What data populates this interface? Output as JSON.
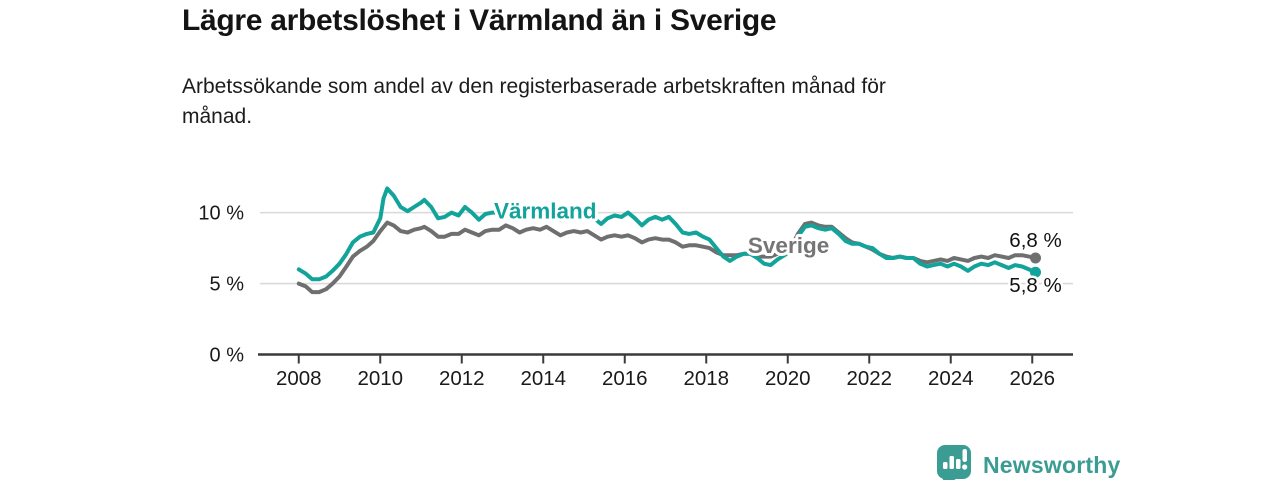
{
  "header": {
    "title": "Lägre arbetslöshet i Värmland än i Sverige",
    "subtitle_lines": [
      "Arbetssökande som andel av den registerbaserade arbetskraften månad för",
      "månad."
    ]
  },
  "footer": {
    "brand": "Newsworthy",
    "brand_color": "#3b9c93",
    "icon": "bar-chart-speech-bubble"
  },
  "colors": {
    "varmland": "#12a39b",
    "sverige": "#6f6f6f",
    "axis": "#3a3a3a",
    "grid": "#d9d9d9",
    "tick_label": "#1a1a1a",
    "value_label": "#111111",
    "background": "#ffffff"
  },
  "chart_data": {
    "type": "line",
    "title": "Lägre arbetslöshet i Värmland än i Sverige",
    "subtitle": "Arbetssökande som andel av den registerbaserade arbetskraften månad för månad.",
    "xlabel": "",
    "ylabel": "",
    "grid": "horizontal",
    "legend_position": "inline-labels",
    "xlim": [
      2007,
      2027
    ],
    "ylim": [
      0,
      12.3
    ],
    "x_ticks": [
      {
        "label": "2008",
        "year": 2008
      },
      {
        "label": "2010",
        "year": 2010
      },
      {
        "label": "2012",
        "year": 2012
      },
      {
        "label": "2014",
        "year": 2014
      },
      {
        "label": "2016",
        "year": 2016
      },
      {
        "label": "2018",
        "year": 2018
      },
      {
        "label": "2020",
        "year": 2020
      },
      {
        "label": "2022",
        "year": 2022
      },
      {
        "label": "2024",
        "year": 2024
      },
      {
        "label": "2026",
        "year": 2026
      }
    ],
    "y_ticks": [
      {
        "label": "10 %",
        "value": 10
      },
      {
        "label": "5 %",
        "value": 5
      },
      {
        "label": "0 %",
        "value": 0
      }
    ],
    "series": [
      {
        "name": "Sverige",
        "color": "#6f6f6f",
        "line_width": 4,
        "end_dot": true,
        "end_value_label": "6,8 %",
        "points": [
          [
            2008.0,
            5.0
          ],
          [
            2008.17,
            4.8
          ],
          [
            2008.33,
            4.4
          ],
          [
            2008.5,
            4.4
          ],
          [
            2008.67,
            4.6
          ],
          [
            2008.83,
            5.0
          ],
          [
            2009.0,
            5.5
          ],
          [
            2009.17,
            6.2
          ],
          [
            2009.33,
            6.9
          ],
          [
            2009.5,
            7.3
          ],
          [
            2009.67,
            7.6
          ],
          [
            2009.83,
            8.0
          ],
          [
            2010.0,
            8.7
          ],
          [
            2010.17,
            9.3
          ],
          [
            2010.33,
            9.1
          ],
          [
            2010.5,
            8.7
          ],
          [
            2010.67,
            8.6
          ],
          [
            2010.83,
            8.8
          ],
          [
            2011.0,
            8.9
          ],
          [
            2011.08,
            9.0
          ],
          [
            2011.25,
            8.7
          ],
          [
            2011.42,
            8.3
          ],
          [
            2011.58,
            8.3
          ],
          [
            2011.75,
            8.5
          ],
          [
            2011.92,
            8.5
          ],
          [
            2012.08,
            8.8
          ],
          [
            2012.25,
            8.6
          ],
          [
            2012.42,
            8.4
          ],
          [
            2012.58,
            8.7
          ],
          [
            2012.75,
            8.8
          ],
          [
            2012.92,
            8.8
          ],
          [
            2013.08,
            9.1
          ],
          [
            2013.25,
            8.9
          ],
          [
            2013.42,
            8.6
          ],
          [
            2013.58,
            8.8
          ],
          [
            2013.75,
            8.9
          ],
          [
            2013.92,
            8.8
          ],
          [
            2014.08,
            9.0
          ],
          [
            2014.25,
            8.7
          ],
          [
            2014.42,
            8.4
          ],
          [
            2014.58,
            8.6
          ],
          [
            2014.75,
            8.7
          ],
          [
            2014.92,
            8.6
          ],
          [
            2015.08,
            8.7
          ],
          [
            2015.25,
            8.4
          ],
          [
            2015.42,
            8.1
          ],
          [
            2015.58,
            8.3
          ],
          [
            2015.75,
            8.4
          ],
          [
            2015.92,
            8.3
          ],
          [
            2016.08,
            8.4
          ],
          [
            2016.25,
            8.2
          ],
          [
            2016.42,
            7.9
          ],
          [
            2016.58,
            8.1
          ],
          [
            2016.75,
            8.2
          ],
          [
            2016.92,
            8.1
          ],
          [
            2017.08,
            8.1
          ],
          [
            2017.25,
            7.9
          ],
          [
            2017.42,
            7.6
          ],
          [
            2017.58,
            7.7
          ],
          [
            2017.75,
            7.7
          ],
          [
            2017.92,
            7.6
          ],
          [
            2018.08,
            7.5
          ],
          [
            2018.25,
            7.2
          ],
          [
            2018.42,
            7.0
          ],
          [
            2018.58,
            7.0
          ],
          [
            2018.75,
            7.0
          ],
          [
            2018.92,
            7.1
          ],
          [
            2019.08,
            7.1
          ],
          [
            2019.25,
            6.9
          ],
          [
            2019.42,
            6.9
          ],
          [
            2019.58,
            6.9
          ],
          [
            2019.75,
            7.1
          ],
          [
            2019.92,
            7.2
          ],
          [
            2020.08,
            7.5
          ],
          [
            2020.25,
            8.5
          ],
          [
            2020.42,
            9.2
          ],
          [
            2020.58,
            9.3
          ],
          [
            2020.75,
            9.1
          ],
          [
            2020.92,
            9.0
          ],
          [
            2021.08,
            9.0
          ],
          [
            2021.25,
            8.6
          ],
          [
            2021.42,
            8.2
          ],
          [
            2021.58,
            7.9
          ],
          [
            2021.75,
            7.8
          ],
          [
            2021.92,
            7.6
          ],
          [
            2022.08,
            7.4
          ],
          [
            2022.25,
            7.1
          ],
          [
            2022.42,
            6.9
          ],
          [
            2022.58,
            6.8
          ],
          [
            2022.75,
            6.9
          ],
          [
            2022.92,
            6.8
          ],
          [
            2023.08,
            6.8
          ],
          [
            2023.25,
            6.6
          ],
          [
            2023.42,
            6.5
          ],
          [
            2023.58,
            6.6
          ],
          [
            2023.75,
            6.7
          ],
          [
            2023.92,
            6.6
          ],
          [
            2024.08,
            6.8
          ],
          [
            2024.25,
            6.7
          ],
          [
            2024.42,
            6.6
          ],
          [
            2024.58,
            6.8
          ],
          [
            2024.75,
            6.9
          ],
          [
            2024.92,
            6.8
          ],
          [
            2025.08,
            7.0
          ],
          [
            2025.25,
            6.9
          ],
          [
            2025.42,
            6.8
          ],
          [
            2025.58,
            7.0
          ],
          [
            2025.75,
            7.0
          ],
          [
            2025.92,
            6.9
          ],
          [
            2026.08,
            6.8
          ]
        ]
      },
      {
        "name": "Värmland",
        "color": "#12a39b",
        "line_width": 4,
        "end_dot": true,
        "end_value_label": "5,8 %",
        "points": [
          [
            2008.0,
            6.0
          ],
          [
            2008.17,
            5.7
          ],
          [
            2008.33,
            5.3
          ],
          [
            2008.5,
            5.3
          ],
          [
            2008.67,
            5.5
          ],
          [
            2008.83,
            5.9
          ],
          [
            2009.0,
            6.4
          ],
          [
            2009.17,
            7.1
          ],
          [
            2009.33,
            7.9
          ],
          [
            2009.5,
            8.3
          ],
          [
            2009.67,
            8.5
          ],
          [
            2009.83,
            8.6
          ],
          [
            2010.0,
            9.6
          ],
          [
            2010.08,
            11.0
          ],
          [
            2010.17,
            11.7
          ],
          [
            2010.33,
            11.2
          ],
          [
            2010.5,
            10.4
          ],
          [
            2010.67,
            10.1
          ],
          [
            2010.83,
            10.4
          ],
          [
            2011.0,
            10.7
          ],
          [
            2011.08,
            10.9
          ],
          [
            2011.25,
            10.4
          ],
          [
            2011.42,
            9.6
          ],
          [
            2011.58,
            9.7
          ],
          [
            2011.75,
            10.0
          ],
          [
            2011.92,
            9.8
          ],
          [
            2012.08,
            10.4
          ],
          [
            2012.25,
            10.0
          ],
          [
            2012.42,
            9.5
          ],
          [
            2012.58,
            9.9
          ],
          [
            2012.75,
            10.0
          ],
          [
            2012.92,
            10.0
          ],
          [
            2013.08,
            10.5
          ],
          [
            2013.25,
            10.2
          ],
          [
            2013.42,
            9.6
          ],
          [
            2013.58,
            10.0
          ],
          [
            2013.75,
            10.1
          ],
          [
            2013.92,
            10.0
          ],
          [
            2014.08,
            10.3
          ],
          [
            2014.25,
            9.9
          ],
          [
            2014.42,
            9.5
          ],
          [
            2014.58,
            9.8
          ],
          [
            2014.75,
            9.9
          ],
          [
            2014.92,
            9.9
          ],
          [
            2015.08,
            10.2
          ],
          [
            2015.25,
            9.6
          ],
          [
            2015.42,
            9.2
          ],
          [
            2015.58,
            9.6
          ],
          [
            2015.75,
            9.8
          ],
          [
            2015.92,
            9.7
          ],
          [
            2016.08,
            10.0
          ],
          [
            2016.25,
            9.6
          ],
          [
            2016.42,
            9.1
          ],
          [
            2016.58,
            9.5
          ],
          [
            2016.75,
            9.7
          ],
          [
            2016.92,
            9.5
          ],
          [
            2017.08,
            9.7
          ],
          [
            2017.25,
            9.2
          ],
          [
            2017.42,
            8.6
          ],
          [
            2017.58,
            8.5
          ],
          [
            2017.75,
            8.6
          ],
          [
            2017.92,
            8.3
          ],
          [
            2018.08,
            8.1
          ],
          [
            2018.25,
            7.5
          ],
          [
            2018.42,
            6.9
          ],
          [
            2018.58,
            6.6
          ],
          [
            2018.75,
            6.9
          ],
          [
            2018.92,
            7.1
          ],
          [
            2019.08,
            7.1
          ],
          [
            2019.25,
            6.8
          ],
          [
            2019.42,
            6.4
          ],
          [
            2019.58,
            6.3
          ],
          [
            2019.75,
            6.7
          ],
          [
            2019.92,
            7.0
          ],
          [
            2020.08,
            7.3
          ],
          [
            2020.25,
            8.3
          ],
          [
            2020.42,
            9.0
          ],
          [
            2020.58,
            9.1
          ],
          [
            2020.75,
            8.9
          ],
          [
            2020.92,
            8.8
          ],
          [
            2021.08,
            8.9
          ],
          [
            2021.25,
            8.5
          ],
          [
            2021.42,
            8.0
          ],
          [
            2021.58,
            7.8
          ],
          [
            2021.75,
            7.8
          ],
          [
            2021.92,
            7.6
          ],
          [
            2022.08,
            7.5
          ],
          [
            2022.25,
            7.1
          ],
          [
            2022.42,
            6.8
          ],
          [
            2022.58,
            6.8
          ],
          [
            2022.75,
            6.9
          ],
          [
            2022.92,
            6.8
          ],
          [
            2023.08,
            6.8
          ],
          [
            2023.25,
            6.4
          ],
          [
            2023.42,
            6.2
          ],
          [
            2023.58,
            6.3
          ],
          [
            2023.75,
            6.4
          ],
          [
            2023.92,
            6.2
          ],
          [
            2024.08,
            6.4
          ],
          [
            2024.25,
            6.2
          ],
          [
            2024.42,
            5.9
          ],
          [
            2024.58,
            6.2
          ],
          [
            2024.75,
            6.4
          ],
          [
            2024.92,
            6.3
          ],
          [
            2025.08,
            6.5
          ],
          [
            2025.25,
            6.3
          ],
          [
            2025.42,
            6.1
          ],
          [
            2025.58,
            6.3
          ],
          [
            2025.75,
            6.2
          ],
          [
            2025.92,
            6.0
          ],
          [
            2026.08,
            5.8
          ]
        ]
      }
    ],
    "series_labels": [
      {
        "text": "Värmland",
        "year": 2014.05,
        "value": 10.1,
        "color": "#12a39b"
      },
      {
        "text": "Sverige",
        "year": 2020.02,
        "value": 7.68,
        "color": "#757575"
      }
    ],
    "value_labels": [
      {
        "text": "6,8 %",
        "year": 2026.08,
        "value": 6.8,
        "dy": -11
      },
      {
        "text": "5,8 %",
        "year": 2026.08,
        "value": 5.8,
        "dy": 20
      }
    ]
  }
}
